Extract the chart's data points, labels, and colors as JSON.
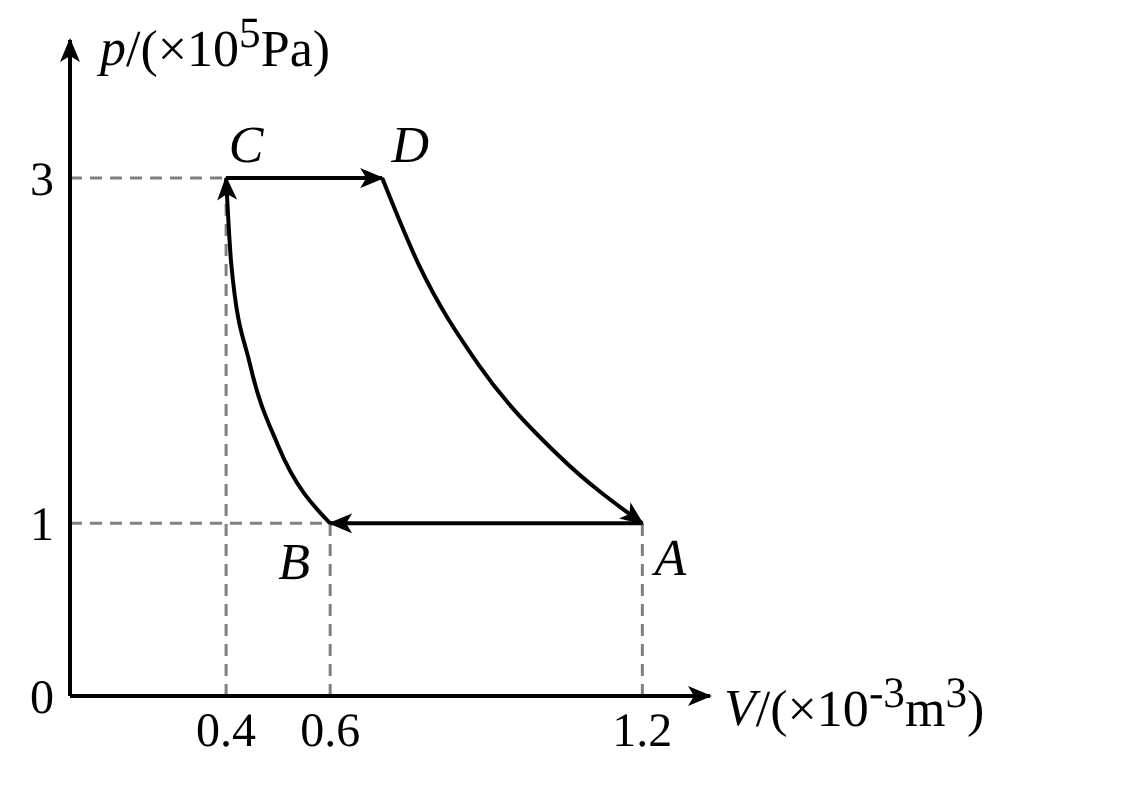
{
  "chart_data": {
    "type": "line",
    "xlabel": "V/(×10$^{-3}$m$^{3}$)",
    "ylabel": "p/(×10$^{5}$Pa)",
    "xlim": [
      0.1,
      1.33
    ],
    "ylim": [
      0,
      3.8
    ],
    "xticks": [
      0.4,
      0.6,
      1.2
    ],
    "yticks": [
      0,
      1,
      3
    ],
    "marker": "none",
    "line_style": "solid",
    "series": [
      {
        "color": "#000000",
        "x": [
          0.6,
          0.5,
          0.446,
          0.41,
          0.4
        ],
        "values": [
          1,
          1.45,
          1.92,
          2.5,
          3
        ]
      },
      {
        "color": "#000000",
        "x": [
          0.4,
          0.7
        ],
        "values": [
          3,
          3
        ]
      },
      {
        "color": "#000000",
        "x": [
          0.7,
          0.77,
          0.885,
          1.04,
          1.2
        ],
        "values": [
          3,
          2.5,
          1.92,
          1.39,
          1
        ]
      },
      {
        "color": "#000000",
        "x": [
          1.2,
          0.6
        ],
        "values": [
          1,
          1
        ]
      }
    ],
    "ref_lines": [
      {
        "axis": "x",
        "value": 0.4,
        "line_style": "dashed",
        "color": "#808080"
      },
      {
        "axis": "x",
        "value": 0.6,
        "line_style": "dashed",
        "color": "#808080"
      },
      {
        "axis": "x",
        "value": 1.2,
        "line_style": "dashed",
        "color": "#808080"
      },
      {
        "axis": "y",
        "value": 1,
        "line_style": "dashed",
        "color": "#808080"
      },
      {
        "axis": "y",
        "value": 3,
        "line_style": "dashed",
        "color": "#808080"
      }
    ],
    "annotations": [
      {
        "text": "A",
        "x": 1.2,
        "y": 1
      },
      {
        "text": "B",
        "x": 0.6,
        "y": 1
      },
      {
        "text": "C",
        "x": 0.4,
        "y": 3
      },
      {
        "text": "D",
        "x": 0.7,
        "y": 3
      }
    ]
  }
}
